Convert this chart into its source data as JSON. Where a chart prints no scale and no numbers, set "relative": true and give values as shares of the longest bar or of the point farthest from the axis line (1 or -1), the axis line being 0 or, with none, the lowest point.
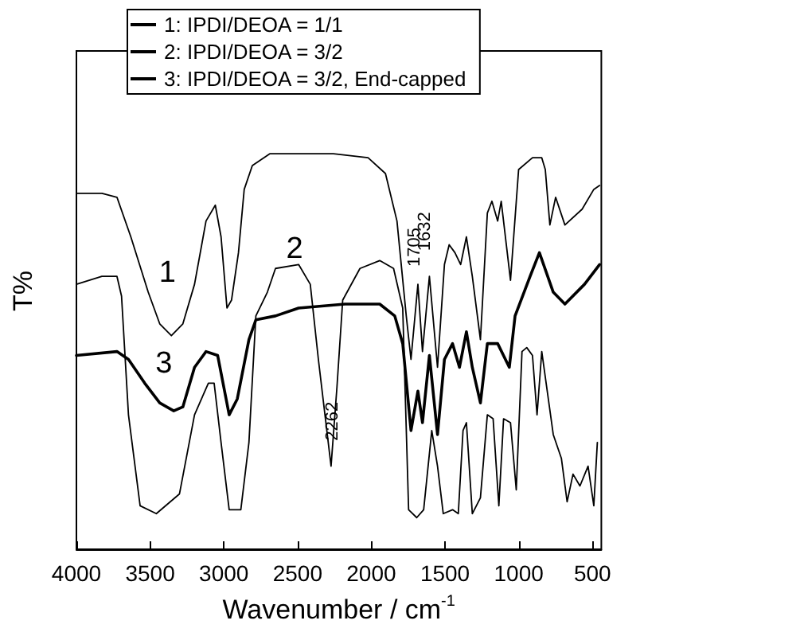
{
  "chart_data": {
    "type": "line",
    "relative": true,
    "xlabel": "Wavenumber / cm$^{-1}$",
    "ylabel": "T%",
    "xlim": [
      4000,
      440
    ],
    "xticks": [
      4000,
      3500,
      3000,
      2500,
      2000,
      1500,
      1000,
      500
    ],
    "legend": "top left",
    "grid": false,
    "line_style": "solid",
    "marker": "none",
    "series": [
      {
        "name": "1: IPDI/DEOA = 1/1",
        "color": "#000000",
        "x": [
          4000,
          3827,
          3725,
          3631,
          3513,
          3435,
          3356,
          3278,
          3199,
          3121,
          3058,
          3019,
          2979,
          2948,
          2901,
          2862,
          2807,
          2689,
          2493,
          2257,
          2022,
          1904,
          1826,
          1763,
          1731,
          1684,
          1653,
          1606,
          1551,
          1504,
          1472,
          1433,
          1394,
          1355,
          1315,
          1260,
          1213,
          1182,
          1143,
          1119,
          1056,
          1001,
          907,
          844,
          820,
          789,
          750,
          687,
          570,
          491,
          452
        ],
        "values": [
          0.9,
          0.9,
          0.89,
          0.79,
          0.65,
          0.57,
          0.54,
          0.57,
          0.67,
          0.83,
          0.87,
          0.79,
          0.61,
          0.63,
          0.75,
          0.91,
          0.97,
          1.0,
          1.0,
          1.0,
          0.99,
          0.95,
          0.83,
          0.59,
          0.48,
          0.67,
          0.5,
          0.69,
          0.46,
          0.72,
          0.77,
          0.75,
          0.72,
          0.79,
          0.69,
          0.53,
          0.85,
          0.88,
          0.83,
          0.88,
          0.68,
          0.96,
          0.99,
          0.99,
          0.96,
          0.82,
          0.89,
          0.82,
          0.86,
          0.91,
          0.92
        ]
      },
      {
        "name": "2: IPDI/DEOA = 3/2",
        "color": "#000000",
        "x": [
          4000,
          3827,
          3725,
          3694,
          3647,
          3568,
          3458,
          3301,
          3199,
          3105,
          3066,
          3019,
          2964,
          2885,
          2830,
          2783,
          2705,
          2650,
          2493,
          2414,
          2359,
          2273,
          2233,
          2194,
          2077,
          1943,
          1849,
          1787,
          1747,
          1692,
          1645,
          1590,
          1551,
          1512,
          1449,
          1410,
          1378,
          1355,
          1315,
          1260,
          1213,
          1174,
          1135,
          1103,
          1056,
          1017,
          978,
          946,
          907,
          876,
          844,
          766,
          711,
          672,
          632,
          585,
          530,
          491,
          467
        ],
        "values": [
          0.67,
          0.69,
          0.69,
          0.64,
          0.34,
          0.11,
          0.09,
          0.14,
          0.34,
          0.42,
          0.42,
          0.27,
          0.1,
          0.1,
          0.27,
          0.59,
          0.65,
          0.71,
          0.72,
          0.67,
          0.48,
          0.21,
          0.41,
          0.63,
          0.71,
          0.73,
          0.71,
          0.61,
          0.1,
          0.08,
          0.1,
          0.3,
          0.21,
          0.09,
          0.1,
          0.09,
          0.3,
          0.32,
          0.09,
          0.13,
          0.34,
          0.33,
          0.11,
          0.33,
          0.32,
          0.15,
          0.5,
          0.51,
          0.49,
          0.34,
          0.5,
          0.29,
          0.23,
          0.12,
          0.19,
          0.16,
          0.21,
          0.11,
          0.27
        ]
      },
      {
        "name": "3: IPDI/DEOA = 3/2, End-capped",
        "color": "#000000",
        "x": [
          4000,
          3725,
          3647,
          3537,
          3435,
          3340,
          3278,
          3199,
          3121,
          3042,
          2964,
          2909,
          2830,
          2783,
          2650,
          2493,
          2179,
          1943,
          1841,
          1787,
          1731,
          1684,
          1653,
          1606,
          1551,
          1504,
          1449,
          1402,
          1355,
          1315,
          1260,
          1213,
          1143,
          1064,
          1025,
          923,
          860,
          766,
          687,
          554,
          452
        ],
        "values": [
          0.49,
          0.5,
          0.48,
          0.42,
          0.37,
          0.35,
          0.36,
          0.46,
          0.5,
          0.49,
          0.34,
          0.38,
          0.53,
          0.58,
          0.59,
          0.61,
          0.62,
          0.62,
          0.59,
          0.52,
          0.3,
          0.4,
          0.32,
          0.49,
          0.29,
          0.48,
          0.52,
          0.46,
          0.55,
          0.46,
          0.37,
          0.52,
          0.52,
          0.46,
          0.59,
          0.69,
          0.75,
          0.65,
          0.62,
          0.67,
          0.72
        ]
      }
    ],
    "annotations": [
      {
        "text": "1",
        "x": 3513,
        "y": 0.65
      },
      {
        "text": "2",
        "x": 2650,
        "y": 0.71
      },
      {
        "text": "3",
        "x": 3537,
        "y": 0.42
      },
      {
        "text": "2262",
        "x": 2262,
        "y": 0.21
      },
      {
        "text": "1705",
        "x": 1705,
        "y": 0.65
      },
      {
        "text": "1632",
        "x": 1637,
        "y": 0.69
      }
    ]
  }
}
